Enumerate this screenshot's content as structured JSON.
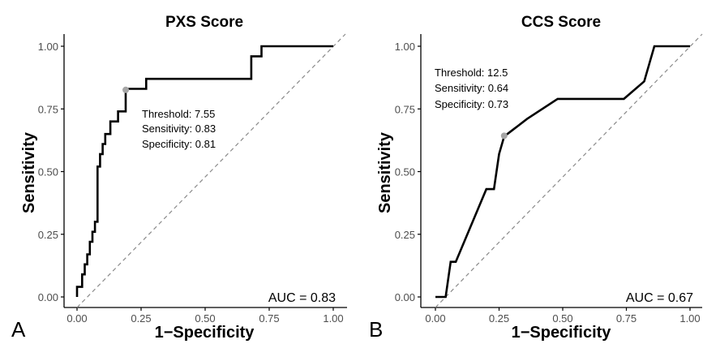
{
  "chart_data": [
    {
      "type": "line",
      "panel_label": "A",
      "title": "PXS Score",
      "xlabel": "1−Specificity",
      "ylabel": "Sensitivity",
      "xlim": [
        0,
        1
      ],
      "ylim": [
        0,
        1
      ],
      "x_ticks": [
        "0.00",
        "0.25",
        "0.50",
        "0.75",
        "1.00"
      ],
      "y_ticks": [
        "0.00",
        "0.25",
        "0.50",
        "0.75",
        "1.00"
      ],
      "grid": false,
      "reference_line": {
        "x": [
          0,
          1
        ],
        "y": [
          0,
          1
        ],
        "style": "dashed"
      },
      "series": [
        {
          "x": [
            0,
            0,
            0.02,
            0.02,
            0.03,
            0.03,
            0.04,
            0.04,
            0.05,
            0.05,
            0.06,
            0.06,
            0.07,
            0.07,
            0.08,
            0.08,
            0.09,
            0.09,
            0.1,
            0.1,
            0.11,
            0.11,
            0.13,
            0.13,
            0.16,
            0.16,
            0.19,
            0.19,
            0.27,
            0.27,
            0.68,
            0.68,
            0.72,
            0.72,
            0.8,
            0.8,
            1.0
          ],
          "y": [
            0,
            0.04,
            0.04,
            0.09,
            0.09,
            0.13,
            0.13,
            0.17,
            0.17,
            0.22,
            0.22,
            0.26,
            0.26,
            0.3,
            0.3,
            0.52,
            0.52,
            0.57,
            0.57,
            0.61,
            0.61,
            0.65,
            0.65,
            0.7,
            0.7,
            0.74,
            0.74,
            0.83,
            0.83,
            0.87,
            0.87,
            0.96,
            0.96,
            1.0,
            1.0,
            1.0,
            1.0
          ]
        }
      ],
      "optimal_point": {
        "x": 0.19,
        "y": 0.826
      },
      "annotation": {
        "threshold": "Threshold: 7.55",
        "sensitivity": "Sensitivity: 0.83",
        "specificity": "Specificity: 0.81"
      },
      "auc_text": "AUC = 0.83",
      "colors": {
        "curve": "#000000",
        "reference": "#8a8a8a",
        "point": "#a6a6a6"
      }
    },
    {
      "type": "line",
      "panel_label": "B",
      "title": "CCS Score",
      "xlabel": "1−Specificity",
      "ylabel": "Sensitivity",
      "xlim": [
        0,
        1
      ],
      "ylim": [
        0,
        1
      ],
      "x_ticks": [
        "0.00",
        "0.25",
        "0.50",
        "0.75",
        "1.00"
      ],
      "y_ticks": [
        "0.00",
        "0.25",
        "0.50",
        "0.75",
        "1.00"
      ],
      "grid": false,
      "reference_line": {
        "x": [
          0,
          1
        ],
        "y": [
          0,
          1
        ],
        "style": "dashed"
      },
      "series": [
        {
          "x": [
            0.0,
            0.04,
            0.06,
            0.08,
            0.2,
            0.23,
            0.25,
            0.27,
            0.36,
            0.48,
            0.74,
            0.82,
            0.86,
            1.0
          ],
          "y": [
            0.0,
            0.0,
            0.14,
            0.14,
            0.43,
            0.43,
            0.57,
            0.64,
            0.71,
            0.79,
            0.79,
            0.86,
            1.0,
            1.0
          ]
        }
      ],
      "optimal_point": {
        "x": 0.27,
        "y": 0.643
      },
      "annotation": {
        "threshold": "Threshold: 12.5",
        "sensitivity": "Sensitivity: 0.64",
        "specificity": "Specificity: 0.73"
      },
      "auc_text": "AUC = 0.67",
      "colors": {
        "curve": "#000000",
        "reference": "#8a8a8a",
        "point": "#a6a6a6"
      }
    }
  ]
}
